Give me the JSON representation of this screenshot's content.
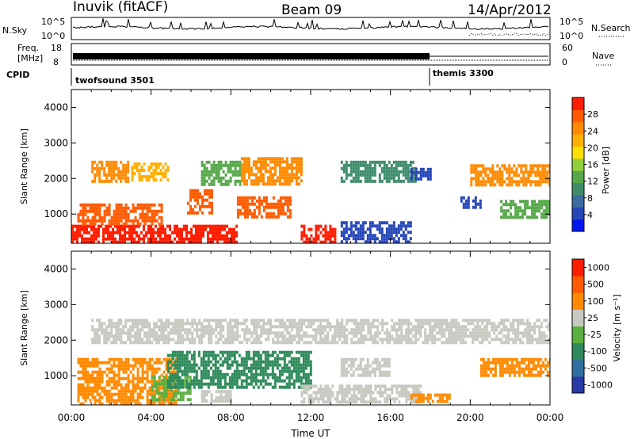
{
  "header": {
    "station": "Inuvik (fitACF)",
    "beam": "Beam 09",
    "date": "14/Apr/2012"
  },
  "status_panels": {
    "nsky_label": "N.Sky",
    "nsky_ticks": [
      "10^5",
      "10^0"
    ],
    "nsearch_label": "N.Search",
    "freq_label_1": "Freq.",
    "freq_label_2": "[MHz]",
    "freq_ticks": [
      "18",
      "8"
    ],
    "nave_label": "Nave",
    "nave_ticks": [
      "60",
      "0"
    ],
    "cpid_label": "CPID",
    "cpid_modes": [
      {
        "name": "twofsound 3501",
        "start_hour": 0
      },
      {
        "name": "themis 3300",
        "start_hour": 18
      }
    ]
  },
  "chart_data": [
    {
      "type": "heatmap",
      "title": "",
      "xlabel": "",
      "ylabel": "Slant Range [km]",
      "x_ticks": [
        "00:00",
        "04:00",
        "08:00",
        "12:00",
        "16:00",
        "20:00",
        "00:00"
      ],
      "y_ticks": [
        "1000",
        "2000",
        "3000",
        "4000"
      ],
      "xlim": [
        0,
        24
      ],
      "ylim": [
        180,
        4500
      ],
      "colorbar": {
        "label": "Power [dB]",
        "ticks": [
          "4",
          "8",
          "12",
          "16",
          "20",
          "24",
          "28"
        ],
        "colors": [
          "#0018f0",
          "#2646b8",
          "#3a6aa0",
          "#3e8c6a",
          "#56a84a",
          "#8fcf3a",
          "#ffe000",
          "#ffb000",
          "#ff8a00",
          "#ff5a00",
          "#ff1e00"
        ]
      },
      "regions": [
        {
          "t0": 0.0,
          "t1": 8.3,
          "r0": 180,
          "r1": 700,
          "c": "#ff1e00"
        },
        {
          "t0": 0.3,
          "t1": 4.5,
          "r0": 700,
          "r1": 1300,
          "c": "#ff5a00"
        },
        {
          "t0": 1.0,
          "t1": 2.8,
          "r0": 1900,
          "r1": 2500,
          "c": "#ff8a00"
        },
        {
          "t0": 3.0,
          "t1": 4.8,
          "r0": 2000,
          "r1": 2450,
          "c": "#ffb000"
        },
        {
          "t0": 5.8,
          "t1": 7.0,
          "r0": 1000,
          "r1": 1700,
          "c": "#ff5a00"
        },
        {
          "t0": 6.5,
          "t1": 8.5,
          "r0": 1800,
          "r1": 2500,
          "c": "#56a84a"
        },
        {
          "t0": 8.5,
          "t1": 11.5,
          "r0": 1800,
          "r1": 2600,
          "c": "#ff8a00"
        },
        {
          "t0": 8.3,
          "t1": 11.0,
          "r0": 900,
          "r1": 1500,
          "c": "#ff5a00"
        },
        {
          "t0": 11.5,
          "t1": 13.2,
          "r0": 180,
          "r1": 700,
          "c": "#ff1e00"
        },
        {
          "t0": 13.5,
          "t1": 17.2,
          "r0": 1900,
          "r1": 2500,
          "c": "#3e8c6a"
        },
        {
          "t0": 13.5,
          "t1": 17.0,
          "r0": 180,
          "r1": 800,
          "c": "#2646b8"
        },
        {
          "t0": 17.0,
          "t1": 18.0,
          "r0": 2000,
          "r1": 2300,
          "c": "#2646b8"
        },
        {
          "t0": 20.0,
          "t1": 24.0,
          "r0": 1800,
          "r1": 2400,
          "c": "#ff8a00"
        },
        {
          "t0": 21.5,
          "t1": 24.0,
          "r0": 900,
          "r1": 1400,
          "c": "#56a84a"
        },
        {
          "t0": 19.5,
          "t1": 20.5,
          "r0": 1200,
          "r1": 1500,
          "c": "#2646b8"
        }
      ]
    },
    {
      "type": "heatmap",
      "title": "",
      "xlabel": "Time UT",
      "ylabel": "Slant Range [km]",
      "x_ticks": [
        "00:00",
        "04:00",
        "08:00",
        "12:00",
        "16:00",
        "20:00",
        "00:00"
      ],
      "y_ticks": [
        "1000",
        "2000",
        "3000",
        "4000"
      ],
      "xlim": [
        0,
        24
      ],
      "ylim": [
        180,
        4500
      ],
      "colorbar": {
        "label": "Velocity [m s⁻¹]",
        "ticks": [
          "1000",
          "500",
          "100",
          "25",
          "-25",
          "-100",
          "-500",
          "-1000"
        ],
        "colors": [
          "#2a3aa8",
          "#3070a0",
          "#2e8a5a",
          "#5ab040",
          "#c8c8c0",
          "#ff8a00",
          "#ff5a00",
          "#ff1e00"
        ]
      },
      "regions": [
        {
          "t0": 0.3,
          "t1": 5.2,
          "r0": 180,
          "r1": 1500,
          "c": "#ff8a00"
        },
        {
          "t0": 4.0,
          "t1": 6.0,
          "r0": 300,
          "r1": 1000,
          "c": "#5ab040"
        },
        {
          "t0": 4.8,
          "t1": 12.0,
          "r0": 700,
          "r1": 1700,
          "c": "#2e8a5a"
        },
        {
          "t0": 1.0,
          "t1": 24.0,
          "r0": 1900,
          "r1": 2600,
          "c": "#c8c8c0"
        },
        {
          "t0": 11.5,
          "t1": 17.5,
          "r0": 250,
          "r1": 750,
          "c": "#c8c8c0"
        },
        {
          "t0": 13.5,
          "t1": 16.0,
          "r0": 1000,
          "r1": 1500,
          "c": "#c8c8c0"
        },
        {
          "t0": 17.0,
          "t1": 19.0,
          "r0": 250,
          "r1": 500,
          "c": "#ff8a00"
        },
        {
          "t0": 20.5,
          "t1": 24.0,
          "r0": 1000,
          "r1": 1500,
          "c": "#ff8a00"
        },
        {
          "t0": 6.5,
          "t1": 8.0,
          "r0": 250,
          "r1": 600,
          "c": "#c8c8c0"
        }
      ]
    }
  ]
}
